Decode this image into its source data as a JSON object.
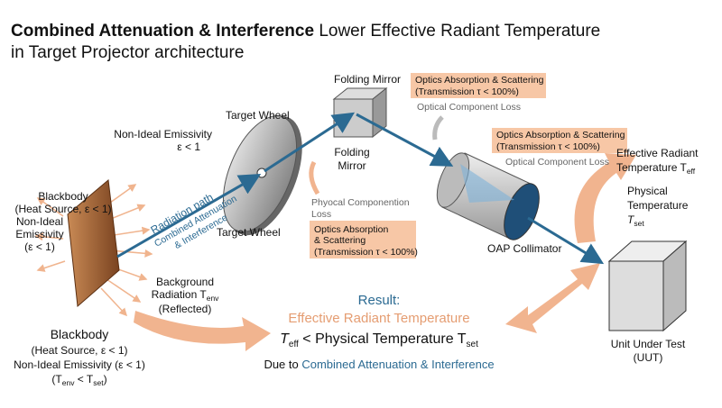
{
  "title": {
    "emphasis": "Combined Attenuation & Interference",
    "rest": "Lower Effective Radiant Temperature",
    "line2": "in Target Projector architecture"
  },
  "folding_mirror": {
    "label_top": "Folding Mirror",
    "label_side": [
      "Folding",
      "Mirror"
    ],
    "loss_box": [
      "Optics Absorption & Scattering",
      "(Transmission τ < 100%)"
    ],
    "loss_note": "Optical Component Loss"
  },
  "collimator": {
    "label": "OAP Collimator",
    "loss_box": [
      "Optics Absorption & Scattering",
      "(Transmission τ < 100%)"
    ],
    "loss_note": "Optical Component Loss"
  },
  "target_wheel": {
    "label_top": "Target Wheel",
    "label_bottom": "Target Wheel",
    "emissivity": [
      "Non-Ideal Emissivity",
      "ε < 1"
    ],
    "loss_note": [
      "Phyocal Componention",
      "Loss"
    ],
    "loss_box": [
      "Optics Absorption",
      "& Scattering",
      "(Transmission τ < 100%)"
    ]
  },
  "radiation_path": [
    "Radiation path",
    "Combined Attenuation",
    "& Interference"
  ],
  "effective_temp": {
    "line1": "Effective Radiant",
    "line2": "Temperature T",
    "sub": "eff"
  },
  "physical_temp": {
    "line1": "Physical",
    "line2": "Temperature",
    "line3": "T",
    "sub": "set"
  },
  "blackbody_top": {
    "name": "Blackbody",
    "source": "(Heat Source, ε < 1)",
    "emissivity": [
      "Non-Ideal",
      "Emissivity",
      "(ε < 1)"
    ]
  },
  "background": {
    "line1": "Background",
    "line2": "Radiation T",
    "sub": "env",
    "line3": "(Reflected)"
  },
  "result": {
    "heading": "Result:",
    "subject": "Effective Radiant Temperature",
    "t1": "T",
    "sub1": "eff",
    "middle": " < Physical Temperature T",
    "sub2": "set",
    "due_prefix": "Due to ",
    "due_emphasis": "Combined Attenuation & Interference"
  },
  "blackbody_bottom": {
    "name": "Blackbody",
    "source": "(Heat Source, ε < 1)",
    "emissivity": "Non-Ideal Emissivity (ε < 1)",
    "cond_open": "(T",
    "cond_sub1": "env",
    "cond_mid": " < T",
    "cond_sub2": "set",
    "cond_close": ")"
  },
  "uut": {
    "line1": "Unit Under Test",
    "line2": "(UUT)"
  }
}
